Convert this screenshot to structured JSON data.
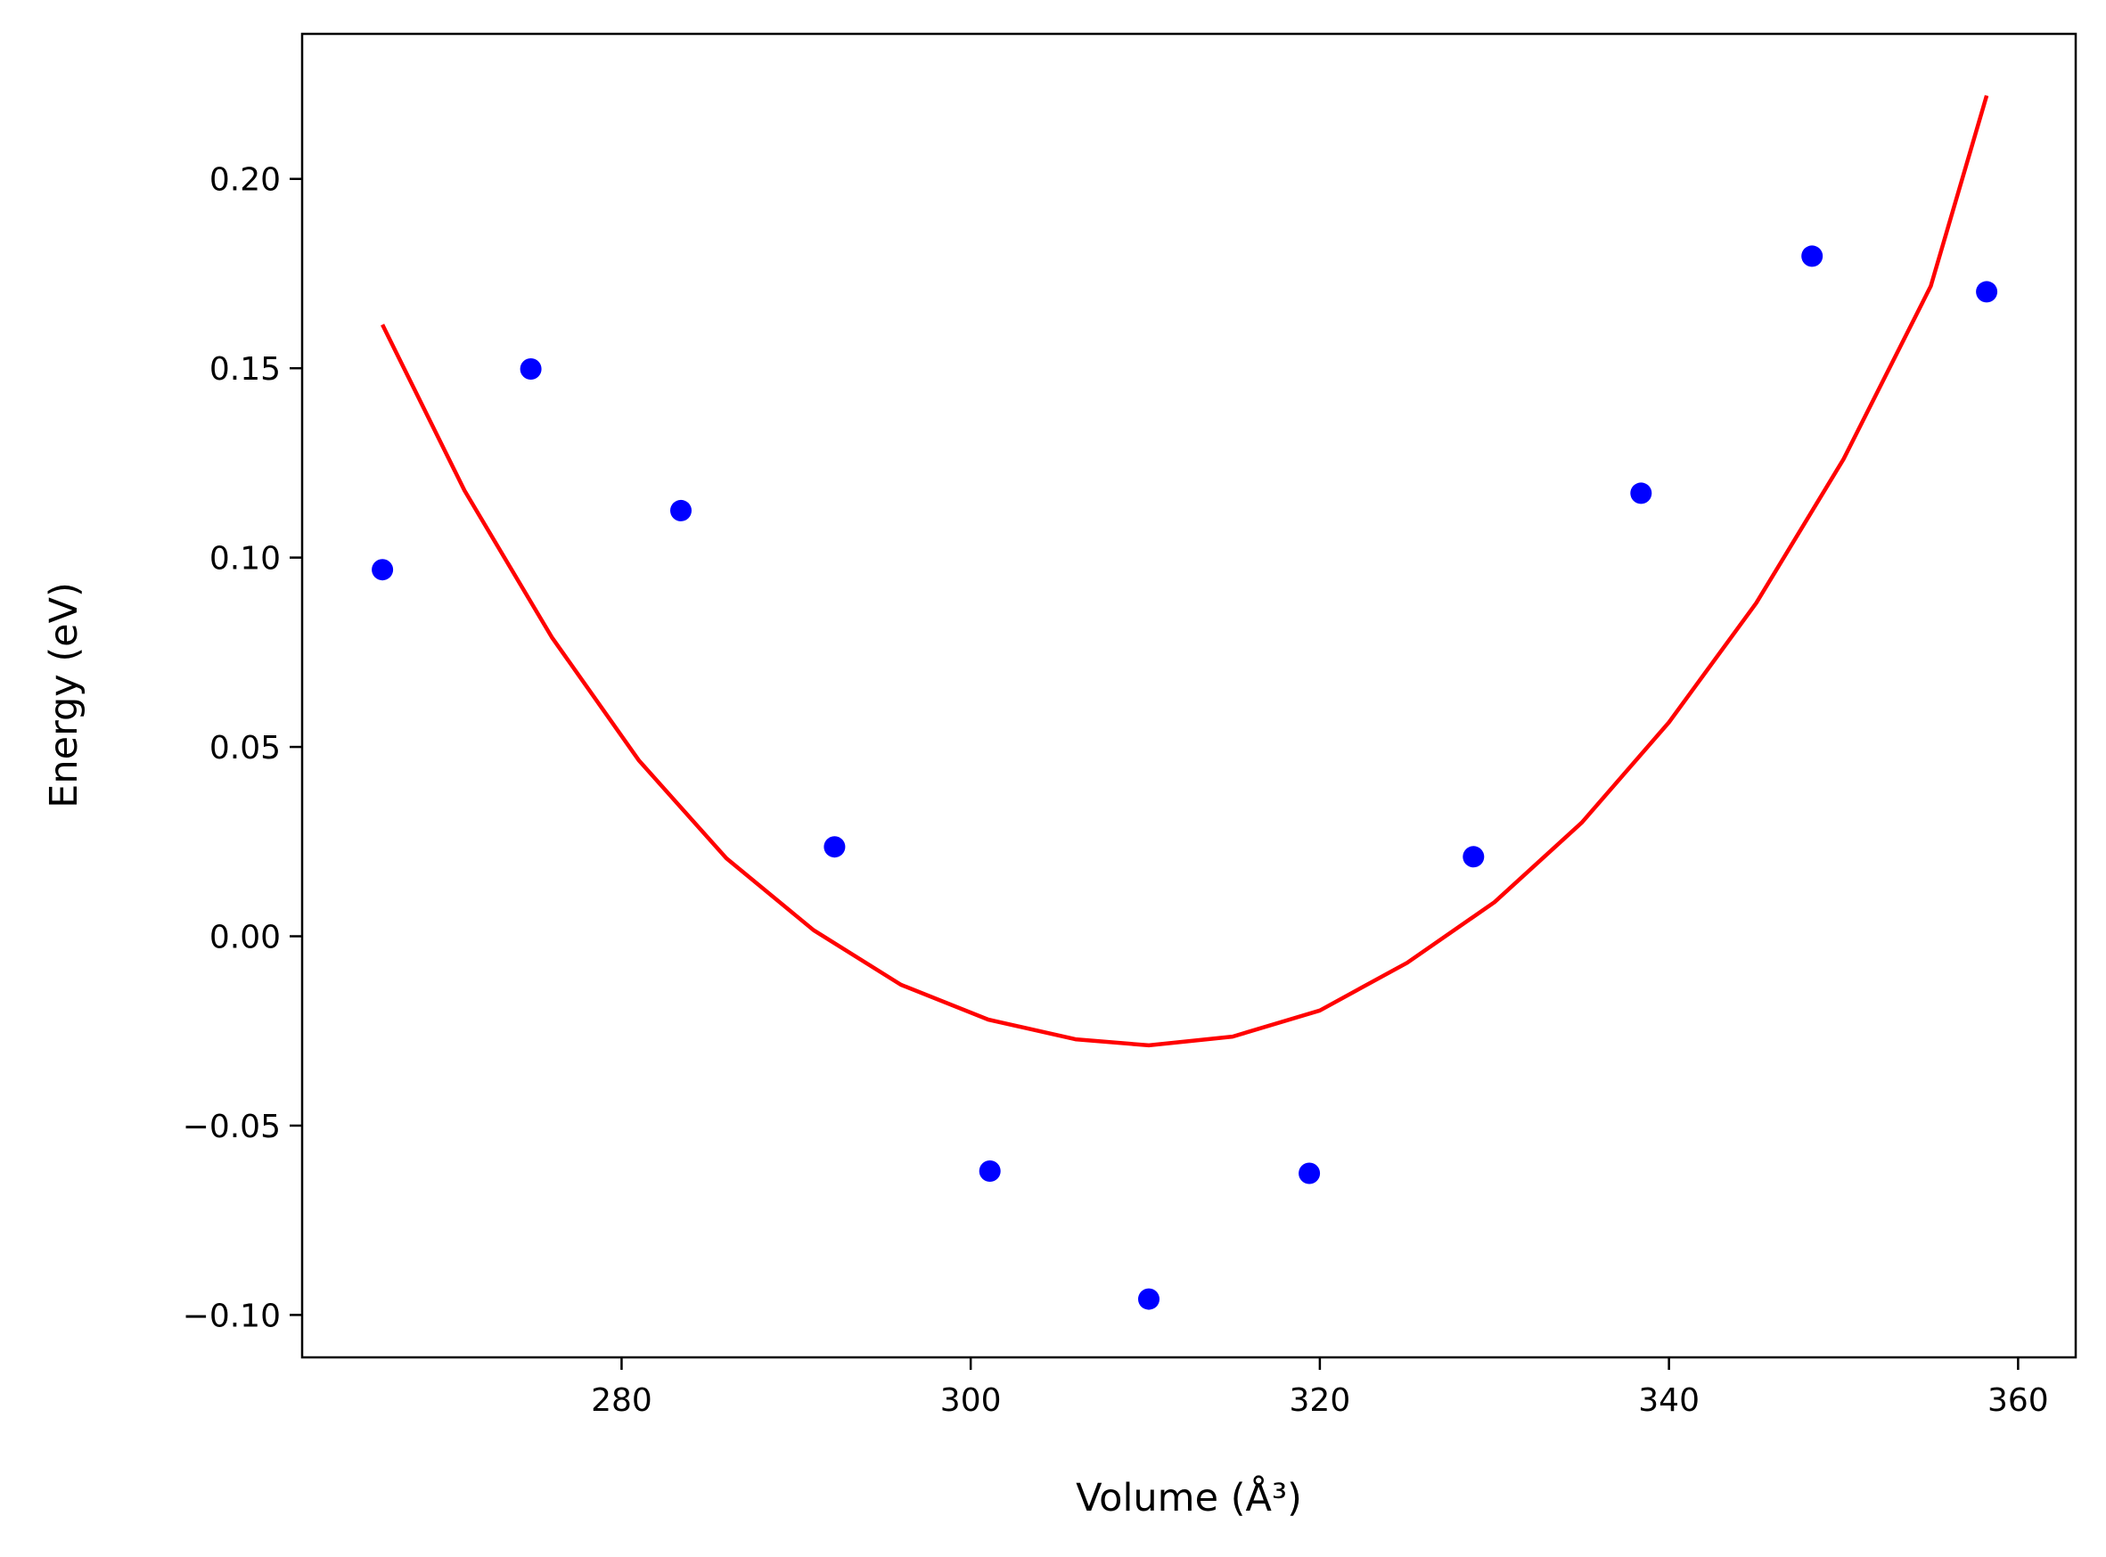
{
  "chart_data": {
    "type": "scatter",
    "xlabel": "Volume (Å³)",
    "ylabel": "Energy (eV)",
    "xlim": [
      261.7,
      363.3
    ],
    "ylim": [
      -0.1112,
      0.2383
    ],
    "xticks": [
      280,
      300,
      320,
      340,
      360
    ],
    "xtick_labels": [
      "280",
      "300",
      "320",
      "340",
      "360"
    ],
    "yticks": [
      -0.1,
      -0.05,
      0.0,
      0.05,
      0.1,
      0.15,
      0.2
    ],
    "ytick_labels": [
      "−0.10",
      "−0.05",
      "0.00",
      "0.05",
      "0.10",
      "0.15",
      "0.20"
    ],
    "grid": false,
    "series": [
      {
        "kind": "scatter",
        "color": "#0000ff",
        "x": [
          266.3,
          274.8,
          283.4,
          292.2,
          301.1,
          310.2,
          319.4,
          328.8,
          338.4,
          348.2,
          358.2
        ],
        "y": [
          0.0968,
          0.1498,
          0.1124,
          0.0236,
          -0.062,
          -0.0958,
          -0.0626,
          0.021,
          0.117,
          0.1796,
          0.1702
        ]
      },
      {
        "kind": "line",
        "color": "#ff0000",
        "x": [
          266.3,
          271.0,
          276.0,
          281.0,
          286.0,
          291.0,
          296.0,
          301.0,
          306.0,
          310.2,
          315.0,
          320.0,
          325.0,
          330.0,
          335.0,
          340.0,
          345.0,
          350.0,
          355.0,
          358.2
        ],
        "y": [
          0.1615,
          0.1177,
          0.079,
          0.0464,
          0.0206,
          0.0016,
          -0.0128,
          -0.022,
          -0.0272,
          -0.0288,
          -0.0265,
          -0.0196,
          -0.007,
          0.009,
          0.03,
          0.0565,
          0.088,
          0.126,
          0.1717,
          0.222
        ]
      }
    ]
  }
}
